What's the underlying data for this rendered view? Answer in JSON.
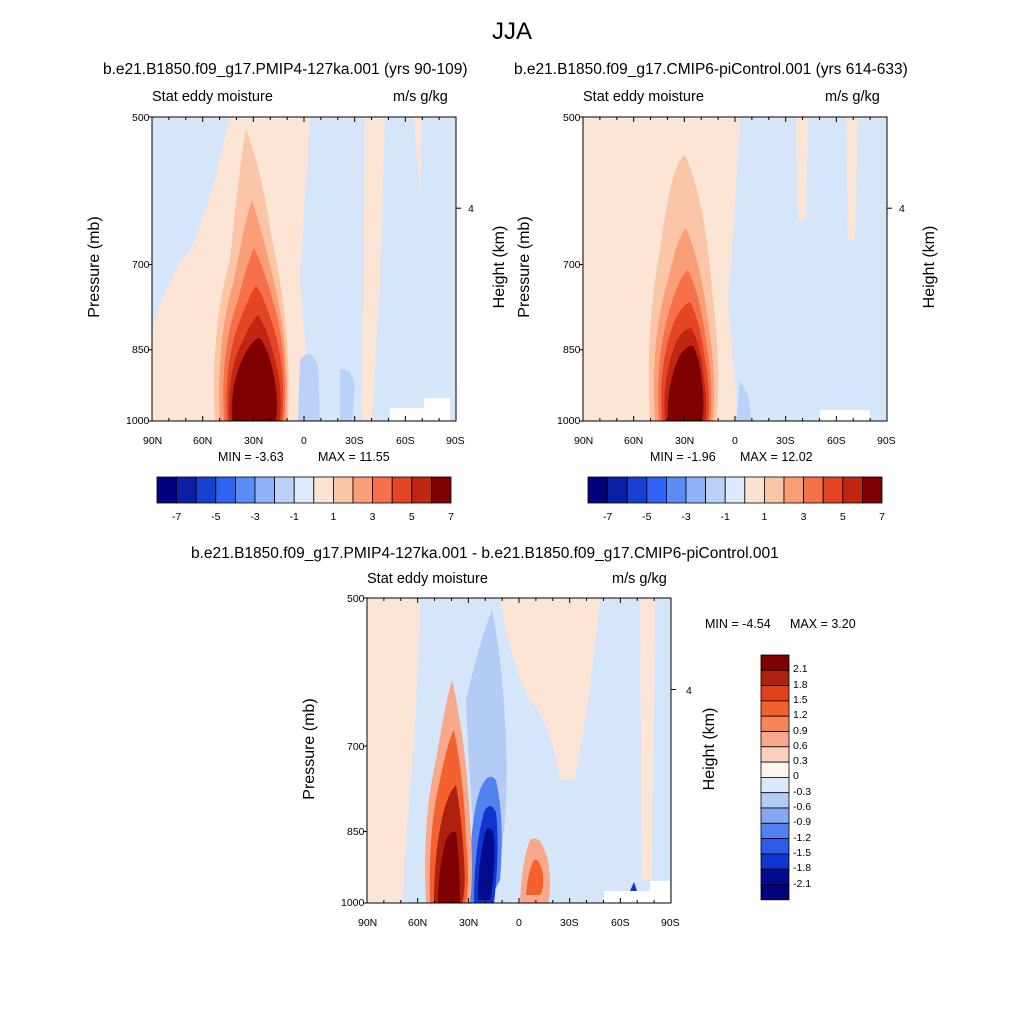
{
  "title": "JJA",
  "chart_data": [
    {
      "type": "heatmap",
      "title": "b.e21.B1850.f09_g17.PMIP4-127ka.001 (yrs 90-109)",
      "left_label": "Stat eddy moisture",
      "right_label": "m/s g/kg",
      "ylabel": "Pressure (mb)",
      "ylabel_right": "Height (km)",
      "x_ticks": [
        "90N",
        "60N",
        "30N",
        "0",
        "30S",
        "60S",
        "90S"
      ],
      "y_ticks": [
        "500",
        "700",
        "850",
        "1000"
      ],
      "y_right_ticks": [
        "4"
      ],
      "ylim": [
        1000,
        500
      ],
      "min_label": "MIN = -3.63",
      "max_label": "MAX = 11.55",
      "colorbar_labels": [
        "-7",
        "-5",
        "-3",
        "-1",
        "1",
        "3",
        "5",
        "7"
      ],
      "features": [
        {
          "kind": "max",
          "lat": 28,
          "pressure": 930,
          "value": 11.55
        },
        {
          "kind": "min",
          "lat": -68,
          "pressure": 960,
          "value": -3.63
        }
      ]
    },
    {
      "type": "heatmap",
      "title": "b.e21.B1850.f09_g17.CMIP6-piControl.001 (yrs 614-633)",
      "left_label": "Stat eddy moisture",
      "right_label": "m/s g/kg",
      "ylabel": "Pressure (mb)",
      "ylabel_right": "Height (km)",
      "x_ticks": [
        "90N",
        "60N",
        "30N",
        "0",
        "30S",
        "60S",
        "90S"
      ],
      "y_ticks": [
        "500",
        "700",
        "850",
        "1000"
      ],
      "y_right_ticks": [
        "4"
      ],
      "ylim": [
        1000,
        500
      ],
      "min_label": "MIN = -1.96",
      "max_label": "MAX = 12.02",
      "colorbar_labels": [
        "-7",
        "-5",
        "-3",
        "-1",
        "1",
        "3",
        "5",
        "7"
      ],
      "features": [
        {
          "kind": "max",
          "lat": 29,
          "pressure": 920,
          "value": 12.02
        },
        {
          "kind": "min",
          "lat": -5,
          "pressure": 960,
          "value": -1.96
        }
      ]
    },
    {
      "type": "heatmap",
      "title": "b.e21.B1850.f09_g17.PMIP4-127ka.001 - b.e21.B1850.f09_g17.CMIP6-piControl.001",
      "left_label": "Stat eddy moisture",
      "right_label": "m/s g/kg",
      "ylabel": "Pressure (mb)",
      "ylabel_right": "Height (km)",
      "x_ticks": [
        "90N",
        "60N",
        "30N",
        "0",
        "30S",
        "60S",
        "90S"
      ],
      "y_ticks": [
        "500",
        "700",
        "850",
        "1000"
      ],
      "y_right_ticks": [
        "4"
      ],
      "ylim": [
        1000,
        500
      ],
      "min_label": "MIN = -4.54",
      "max_label": "MAX = 3.20",
      "colorbar_labels": [
        "2.1",
        "1.8",
        "1.5",
        "1.2",
        "0.9",
        "0.6",
        "0.3",
        "0",
        "-0.3",
        "-0.6",
        "-0.9",
        "-1.2",
        "-1.5",
        "-1.8",
        "-2.1"
      ],
      "features": [
        {
          "kind": "max",
          "lat": 41,
          "pressure": 930,
          "value": 3.2
        },
        {
          "kind": "min",
          "lat": 22,
          "pressure": 920,
          "value": -4.54
        }
      ]
    }
  ],
  "colors": {
    "abs_scale": [
      "#00007f",
      "#0a1fa5",
      "#1740d3",
      "#3063f5",
      "#5b8bf5",
      "#8fb1f5",
      "#bcd1f7",
      "#ddeafc",
      "#fde3d3",
      "#fbc5a7",
      "#f99e77",
      "#f5704b",
      "#e44524",
      "#c22512",
      "#7f0000"
    ],
    "diff_scale": [
      "#7f0000",
      "#b0200e",
      "#e0401a",
      "#f4612e",
      "#f7845a",
      "#f9a98b",
      "#fcd0bb",
      "#fbf4ef",
      "#dce9fa",
      "#b3cbf5",
      "#86a8f1",
      "#5382f0",
      "#2a5bea",
      "#1034cf",
      "#000c8c",
      "#00007f"
    ],
    "field_bg": "#d6e6fa",
    "positive_bg": "#fce5d4"
  }
}
